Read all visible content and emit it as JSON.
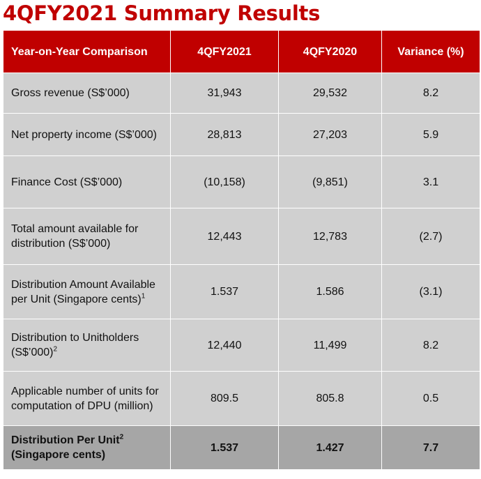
{
  "title": "4QFY2021 Summary Results",
  "table": {
    "headers": [
      "Year-on-Year Comparison",
      "4QFY2021",
      "4QFY2020",
      "Variance (%)"
    ],
    "rows": [
      {
        "label": "Gross revenue (S$’000)",
        "sup": "",
        "values": [
          "31,943",
          "29,532",
          "8.2"
        ]
      },
      {
        "label": "Net property income (S$’000)",
        "sup": "",
        "values": [
          "28,813",
          "27,203",
          "5.9"
        ]
      },
      {
        "label": "Finance Cost (S$’000)",
        "sup": "",
        "values": [
          "(10,158)",
          "(9,851)",
          "3.1"
        ]
      },
      {
        "label": "Total amount available for distribution (S$’000)",
        "sup": "",
        "values": [
          "12,443",
          "12,783",
          "(2.7)"
        ]
      },
      {
        "label": "Distribution Amount Available per Unit (Singapore cents)",
        "sup": "1",
        "values": [
          "1.537",
          "1.586",
          "(3.1)"
        ]
      },
      {
        "label": "Distribution to Unitholders (S$’000)",
        "sup": "2",
        "values": [
          "12,440",
          "11,499",
          "8.2"
        ]
      },
      {
        "label": "Applicable number of units for computation of DPU (million)",
        "sup": "",
        "values": [
          "809.5",
          "805.8",
          "0.5"
        ]
      }
    ],
    "total": {
      "label_line1": "Distribution Per Unit",
      "sup": "2",
      "label_line2": "(Singapore cents)",
      "values": [
        "1.537",
        "1.427",
        "7.7"
      ]
    }
  },
  "colors": {
    "header_bg": "#c00000",
    "row_bg": "#d0d0d0",
    "total_bg": "#a6a6a6",
    "title": "#c00000"
  }
}
